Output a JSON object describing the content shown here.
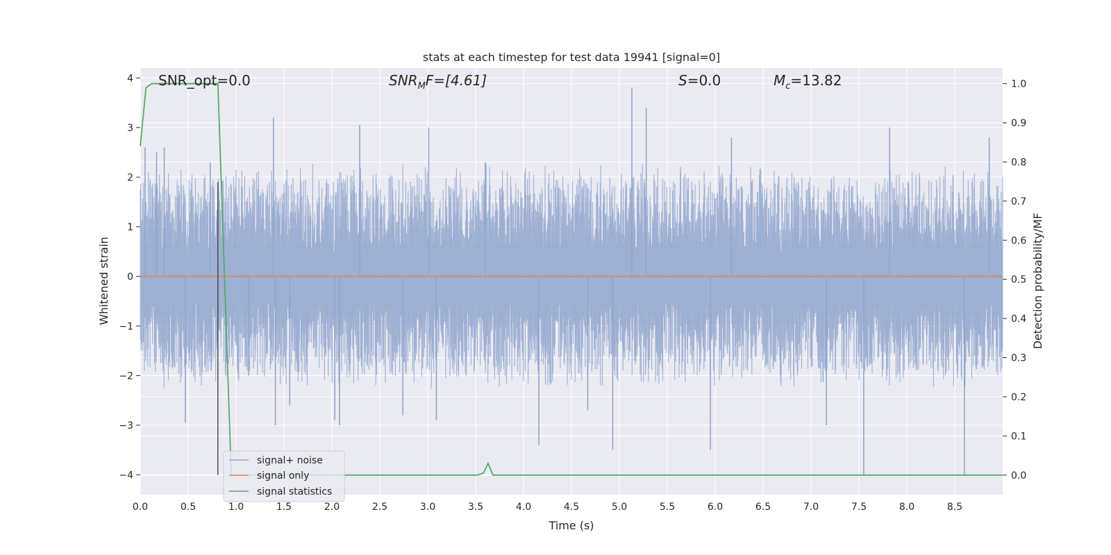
{
  "chart_data": {
    "type": "line",
    "title": "stats at each timestep for test data 19941 [signal=0]",
    "xlabel": "Time (s)",
    "ylabel": "Whitened strain",
    "y2label": "Detection probability/MF",
    "xlim": [
      0,
      9.0
    ],
    "ylim": [
      -4.4,
      4.2
    ],
    "y2lim": [
      -0.05,
      1.04
    ],
    "x_ticks": [
      "0.0",
      "0.5",
      "1.0",
      "1.5",
      "2.0",
      "2.5",
      "3.0",
      "3.5",
      "4.0",
      "4.5",
      "5.0",
      "5.5",
      "6.0",
      "6.5",
      "7.0",
      "7.5",
      "8.0",
      "8.5"
    ],
    "y_ticks": [
      "−4",
      "−3",
      "−2",
      "−1",
      "0",
      "1",
      "2",
      "3",
      "4"
    ],
    "y2_ticks": [
      "0.0",
      "0.1",
      "0.2",
      "0.3",
      "0.4",
      "0.5",
      "0.6",
      "0.7",
      "0.8",
      "0.9",
      "1.0"
    ],
    "grid": true,
    "legend_position": "lower-left",
    "vline_x": 0.81,
    "annotations": {
      "snr_opt": "SNR_opt=0.0",
      "snr_mf_main": "SNR",
      "snr_mf_sub": "M",
      "snr_mf_tail": "F=[4.61]",
      "s_main": "S",
      "s_tail": "=0.0",
      "mc_main": "M",
      "mc_sub": "c",
      "mc_tail": "=13.82"
    },
    "series": [
      {
        "name": "signal+ noise",
        "color": "#8fa4cc",
        "axis": "left",
        "amplitude_envelope": [
          1.8,
          2.3
        ],
        "spikes": [
          [
            0.05,
            2.6
          ],
          [
            0.17,
            2.5
          ],
          [
            0.25,
            2.6
          ],
          [
            0.47,
            -2.95
          ],
          [
            0.73,
            2.3
          ],
          [
            1.13,
            -2.0
          ],
          [
            1.39,
            3.2
          ],
          [
            1.41,
            -3.0
          ],
          [
            1.56,
            -2.6
          ],
          [
            2.03,
            -2.9
          ],
          [
            2.08,
            -3.0
          ],
          [
            2.29,
            3.05
          ],
          [
            2.74,
            -2.8
          ],
          [
            3.01,
            3.0
          ],
          [
            3.09,
            -2.9
          ],
          [
            3.6,
            2.3
          ],
          [
            4.16,
            -3.4
          ],
          [
            4.67,
            -2.7
          ],
          [
            4.93,
            -3.5
          ],
          [
            5.13,
            3.8
          ],
          [
            5.28,
            3.4
          ],
          [
            5.95,
            -3.5
          ],
          [
            6.17,
            2.8
          ],
          [
            7.16,
            -3.0
          ],
          [
            7.55,
            -4.0
          ],
          [
            7.82,
            3.0
          ],
          [
            8.6,
            -4.0
          ],
          [
            8.86,
            2.8
          ]
        ]
      },
      {
        "name": "signal only",
        "color": "#dd8452",
        "axis": "left",
        "x": [
          0,
          9.0
        ],
        "y": [
          0,
          0
        ]
      },
      {
        "name": "signal statistics",
        "color": "#55a868",
        "axis": "right",
        "x": [
          0.0,
          0.06,
          0.12,
          0.2,
          0.79,
          0.81,
          0.95,
          1.0,
          3.52,
          3.58,
          3.63,
          3.68,
          3.75,
          9.0
        ],
        "y": [
          0.84,
          0.99,
          1.0,
          1.0,
          1.0,
          1.0,
          0.0,
          0.0,
          0.0,
          0.005,
          0.03,
          0.0,
          0.0,
          0.0
        ]
      }
    ]
  }
}
